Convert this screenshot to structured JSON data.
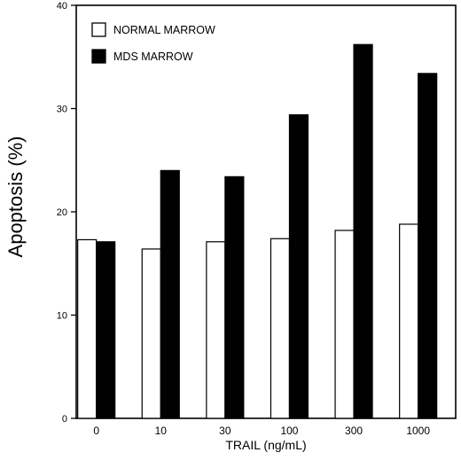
{
  "chart_data": {
    "type": "bar",
    "title": "",
    "xlabel": "TRAIL (ng/mL)",
    "ylabel": "Apoptosis  (%)",
    "ylim": [
      0,
      40
    ],
    "yticks": [
      0,
      10,
      20,
      30,
      40
    ],
    "categories": [
      "0",
      "10",
      "30",
      "100",
      "300",
      "1000"
    ],
    "grid": false,
    "legend_position": "top-left",
    "series": [
      {
        "name": "NORMAL MARROW",
        "color": "#ffffff",
        "values": [
          17.3,
          16.4,
          17.1,
          17.4,
          18.2,
          18.8
        ]
      },
      {
        "name": "MDS MARROW",
        "color": "#000000",
        "values": [
          17.1,
          24.0,
          23.4,
          29.4,
          36.2,
          33.4
        ]
      }
    ]
  }
}
